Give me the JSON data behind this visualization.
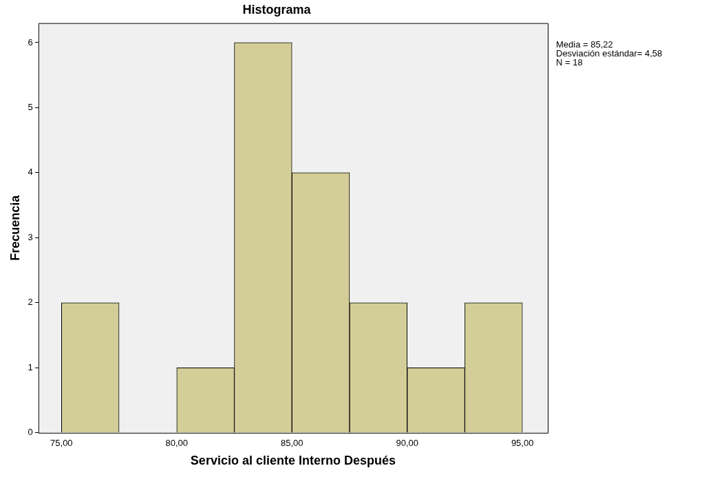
{
  "chart_data": {
    "type": "histogram",
    "title": "Histograma",
    "xlabel": "Servicio al cliente Interno Después",
    "ylabel": "Frecuencia",
    "bins": [
      75,
      77.5,
      80,
      82.5,
      85,
      87.5,
      90,
      92.5,
      95
    ],
    "values": [
      2,
      0,
      1,
      6,
      4,
      2,
      1,
      2
    ],
    "color": "#d3ce97",
    "xlim": [
      74,
      96.1
    ],
    "xticks": [
      {
        "value": 75,
        "label": "75,00"
      },
      {
        "value": 80,
        "label": "80,00"
      },
      {
        "value": 85,
        "label": "85,00"
      },
      {
        "value": 90,
        "label": "90,00"
      },
      {
        "value": 95,
        "label": "95,00"
      }
    ],
    "ylim": [
      0,
      6.3
    ],
    "yticks": [
      0,
      1,
      2,
      3,
      4,
      5,
      6
    ],
    "grid": false,
    "annotations": [
      "Media = 85,22",
      "Desviación estándar= 4,58",
      "N = 18"
    ]
  }
}
